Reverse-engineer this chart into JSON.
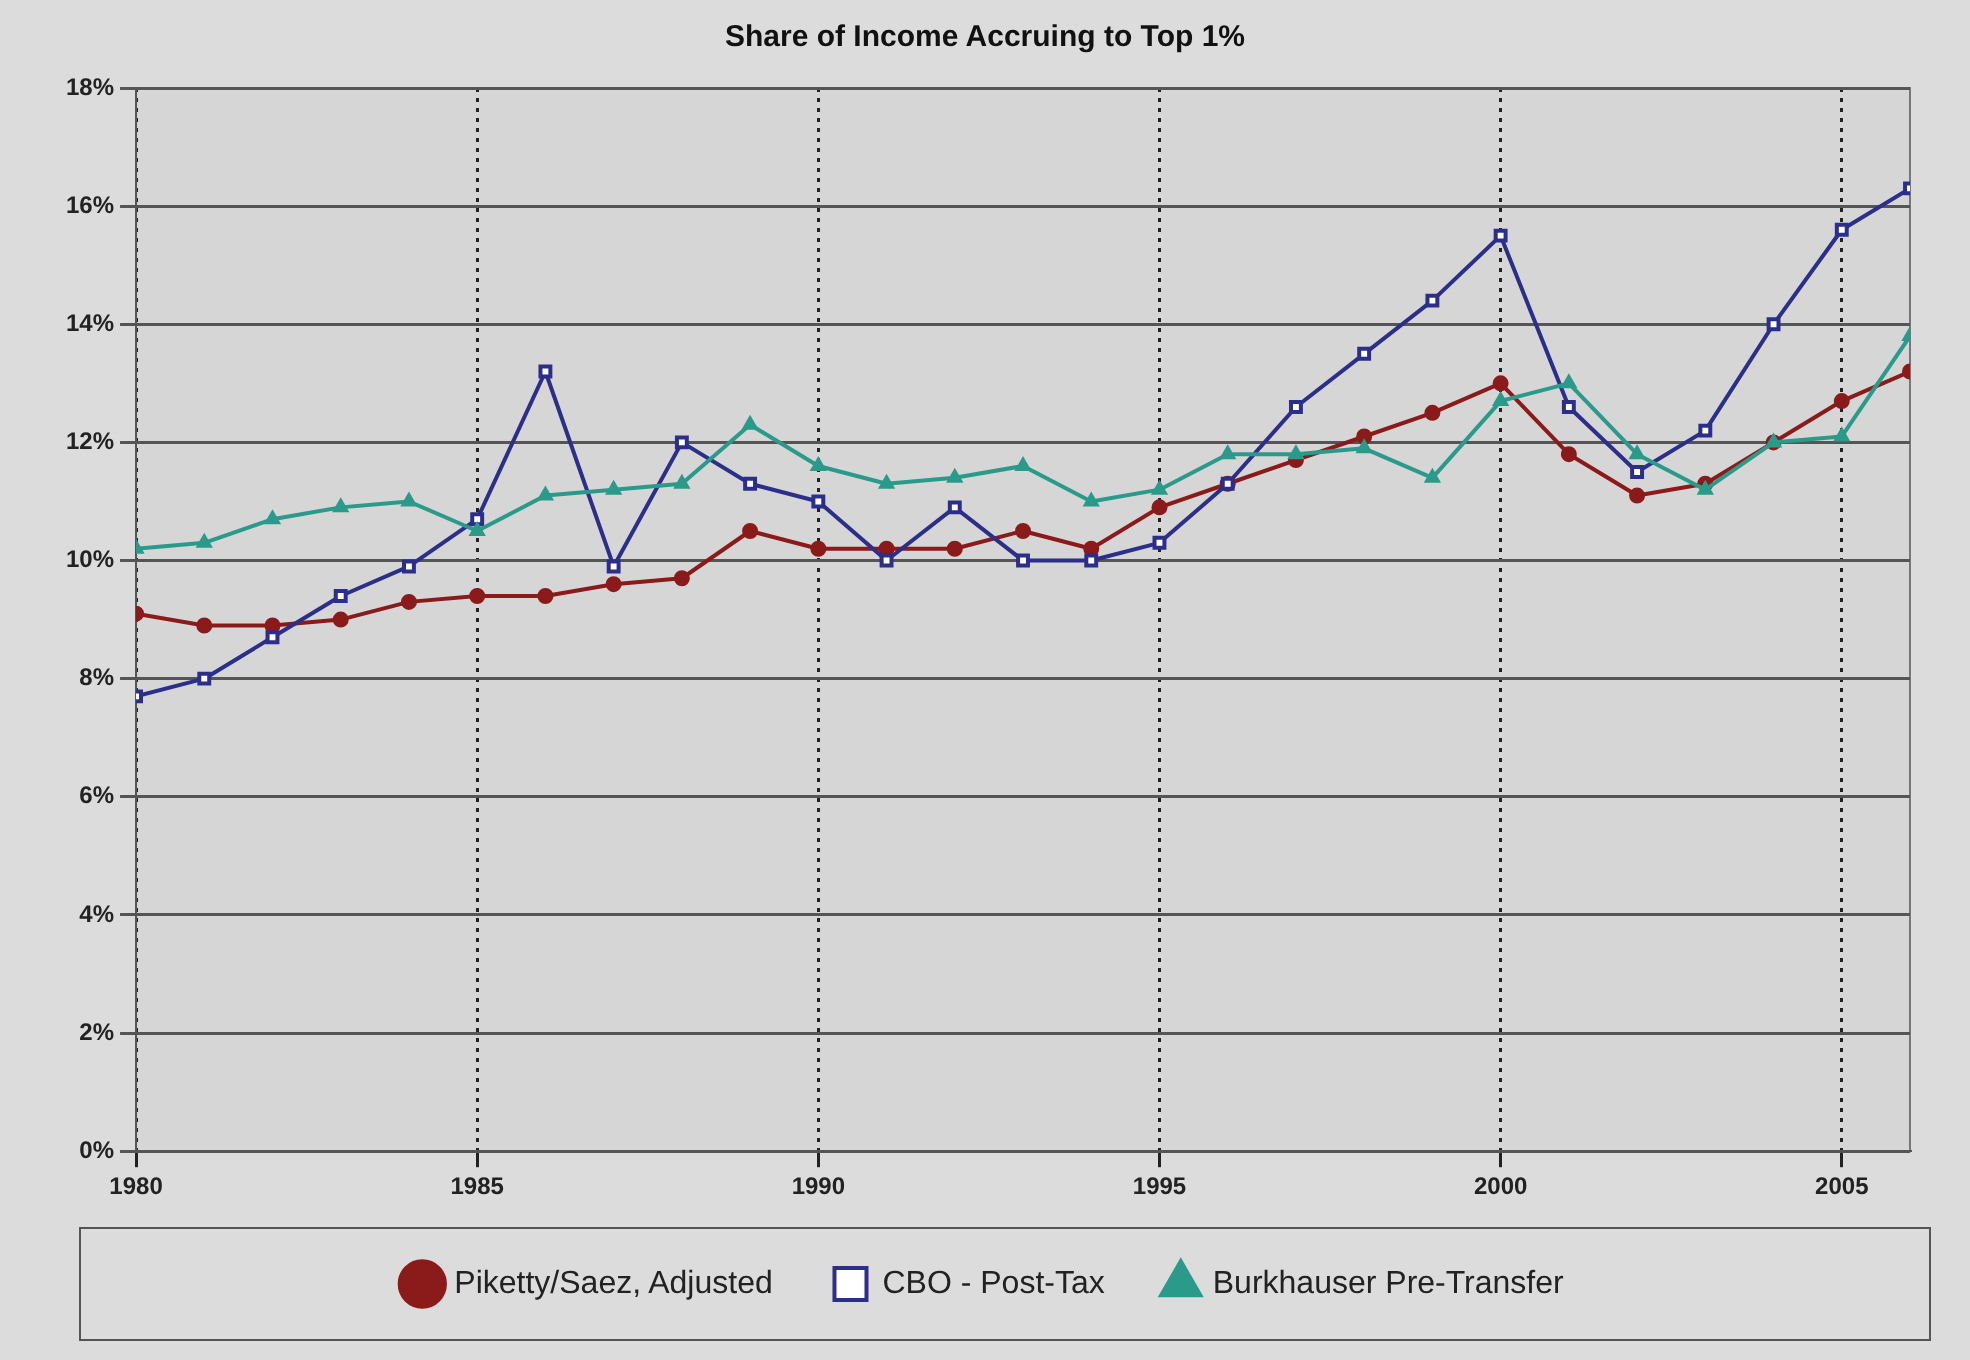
{
  "chart_data": {
    "type": "line",
    "title": "Share of Income Accruing to Top 1%",
    "x": [
      1980,
      1981,
      1982,
      1983,
      1984,
      1985,
      1986,
      1987,
      1988,
      1989,
      1990,
      1991,
      1992,
      1993,
      1994,
      1995,
      1996,
      1997,
      1998,
      1999,
      2000,
      2001,
      2002,
      2003,
      2004,
      2005,
      2006
    ],
    "series": [
      {
        "name": "Piketty/Saez, Adjusted",
        "color": "#8b1a1a",
        "marker": "circle",
        "values": [
          9.1,
          8.9,
          8.9,
          9.0,
          9.3,
          9.4,
          9.4,
          9.6,
          9.7,
          10.5,
          10.2,
          10.2,
          10.2,
          10.5,
          10.2,
          10.9,
          11.3,
          11.7,
          12.1,
          12.5,
          13.0,
          11.8,
          11.1,
          11.3,
          12.0,
          12.7,
          13.2
        ]
      },
      {
        "name": "CBO - Post-Tax",
        "color": "#2b2f8a",
        "marker": "square",
        "values": [
          7.7,
          8.0,
          8.7,
          9.4,
          9.9,
          10.7,
          13.2,
          9.9,
          12.0,
          11.3,
          11.0,
          10.0,
          10.9,
          10.0,
          10.0,
          10.3,
          11.3,
          12.6,
          13.5,
          14.4,
          15.5,
          12.6,
          11.5,
          12.2,
          14.0,
          15.6,
          16.3
        ]
      },
      {
        "name": "Burkhauser Pre-Transfer",
        "color": "#2a9a8a",
        "marker": "triangle",
        "values": [
          10.2,
          10.3,
          10.7,
          10.9,
          11.0,
          10.5,
          11.1,
          11.2,
          11.3,
          12.3,
          11.6,
          11.3,
          11.4,
          11.6,
          11.0,
          11.2,
          11.8,
          11.8,
          11.9,
          11.4,
          12.7,
          13.0,
          11.8,
          11.2,
          12.0,
          12.1,
          13.8
        ]
      }
    ],
    "xlim": [
      1980,
      2006
    ],
    "xticks": [
      1980,
      1985,
      1990,
      1995,
      2000,
      2005
    ],
    "ylim": [
      0,
      18
    ],
    "yticks": [
      {
        "value": 0,
        "label": "0%"
      },
      {
        "value": 2,
        "label": "2%"
      },
      {
        "value": 4,
        "label": "4%"
      },
      {
        "value": 6,
        "label": "6%"
      },
      {
        "value": 8,
        "label": "8%"
      },
      {
        "value": 10,
        "label": "10%"
      },
      {
        "value": 12,
        "label": "12%"
      },
      {
        "value": 14,
        "label": "14%"
      },
      {
        "value": 16,
        "label": "16%"
      },
      {
        "value": 18,
        "label": "18%"
      }
    ],
    "grid": true,
    "legend": "bottom"
  }
}
